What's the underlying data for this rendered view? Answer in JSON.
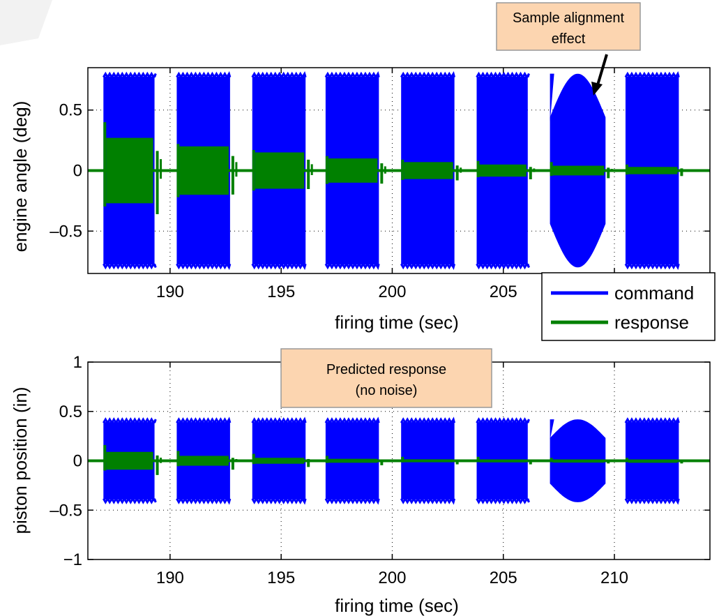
{
  "chart_data": [
    {
      "type": "line",
      "title": "",
      "xlabel": "firing time (sec)",
      "ylabel": "engine angle (deg)",
      "xlim": [
        186.3,
        214.3
      ],
      "ylim": [
        -0.85,
        0.85
      ],
      "xticks": [
        190,
        195,
        200,
        205,
        210
      ],
      "yticks": [
        0.5,
        0,
        -0.5
      ],
      "ytick_labels": [
        "0.5",
        "0",
        "–0.5"
      ],
      "xtick_labels": [
        "190",
        "195",
        "200",
        "205",
        ""
      ],
      "grid": true,
      "legend": {
        "position": "bottom-right",
        "entries": [
          "command",
          "response"
        ]
      },
      "series": [
        {
          "name": "command",
          "color": "#0000ff",
          "segments": [
            {
              "start": 187.0,
              "end": 189.3,
              "amplitude": 0.8
            },
            {
              "start": 190.3,
              "end": 192.7,
              "amplitude": 0.8
            },
            {
              "start": 193.7,
              "end": 196.1,
              "amplitude": 0.8
            },
            {
              "start": 197.0,
              "end": 199.4,
              "amplitude": 0.8
            },
            {
              "start": 200.4,
              "end": 202.8,
              "amplitude": 0.8
            },
            {
              "start": 203.8,
              "end": 206.1,
              "amplitude": 0.8
            },
            {
              "start": 207.1,
              "end": 209.6,
              "amplitude": 0.8
            },
            {
              "start": 210.5,
              "end": 212.9,
              "amplitude": 0.8
            }
          ]
        },
        {
          "name": "response",
          "color": "#008000",
          "segments": [
            {
              "start": 187.0,
              "end": 189.3,
              "amplitude": 0.27,
              "spike": 0.4
            },
            {
              "start": 190.3,
              "end": 192.7,
              "amplitude": 0.2,
              "spike": 0.22
            },
            {
              "start": 193.7,
              "end": 196.1,
              "amplitude": 0.15,
              "spike": 0.17
            },
            {
              "start": 197.0,
              "end": 199.4,
              "amplitude": 0.1,
              "spike": 0.12
            },
            {
              "start": 200.4,
              "end": 202.8,
              "amplitude": 0.07,
              "spike": 0.09
            },
            {
              "start": 203.8,
              "end": 206.1,
              "amplitude": 0.05,
              "spike": 0.08
            },
            {
              "start": 207.1,
              "end": 209.6,
              "amplitude": 0.04,
              "spike": 0.07
            },
            {
              "start": 210.5,
              "end": 212.9,
              "amplitude": 0.03,
              "spike": 0.05
            }
          ]
        }
      ],
      "annotation": "Sample alignment effect",
      "annotation_lines": [
        "Sample alignment",
        "effect"
      ]
    },
    {
      "type": "line",
      "title": "",
      "xlabel": "firing time (sec)",
      "ylabel": "piston position (in)",
      "xlim": [
        186.3,
        214.3
      ],
      "ylim": [
        -1,
        1
      ],
      "xticks": [
        190,
        195,
        200,
        205,
        210
      ],
      "yticks": [
        1,
        0.5,
        0,
        -0.5,
        -1
      ],
      "ytick_labels": [
        "1",
        "0.5",
        "0",
        "–0.5",
        "−1"
      ],
      "xtick_labels": [
        "190",
        "195",
        "200",
        "205",
        "210"
      ],
      "grid": true,
      "series": [
        {
          "name": "command",
          "color": "#0000ff",
          "segments": [
            {
              "start": 187.0,
              "end": 189.3,
              "amplitude": 0.42
            },
            {
              "start": 190.3,
              "end": 192.7,
              "amplitude": 0.42
            },
            {
              "start": 193.7,
              "end": 196.1,
              "amplitude": 0.42
            },
            {
              "start": 197.0,
              "end": 199.4,
              "amplitude": 0.42
            },
            {
              "start": 200.4,
              "end": 202.8,
              "amplitude": 0.42
            },
            {
              "start": 203.8,
              "end": 206.1,
              "amplitude": 0.42
            },
            {
              "start": 207.1,
              "end": 209.6,
              "amplitude": 0.42
            },
            {
              "start": 210.5,
              "end": 212.9,
              "amplitude": 0.42
            }
          ]
        },
        {
          "name": "response",
          "color": "#008000",
          "segments": [
            {
              "start": 187.0,
              "end": 189.3,
              "amplitude": 0.09,
              "spike": 0.16
            },
            {
              "start": 190.3,
              "end": 192.7,
              "amplitude": 0.05,
              "spike": 0.1
            },
            {
              "start": 193.7,
              "end": 196.1,
              "amplitude": 0.03,
              "spike": 0.07
            },
            {
              "start": 197.0,
              "end": 199.4,
              "amplitude": 0.02,
              "spike": 0.05
            },
            {
              "start": 200.4,
              "end": 202.8,
              "amplitude": 0.015,
              "spike": 0.04
            },
            {
              "start": 203.8,
              "end": 206.1,
              "amplitude": 0.012,
              "spike": 0.04
            },
            {
              "start": 207.1,
              "end": 209.6,
              "amplitude": 0.01,
              "spike": 0.03
            },
            {
              "start": 210.5,
              "end": 212.9,
              "amplitude": 0.008,
              "spike": 0.03
            }
          ]
        }
      ],
      "annotation": "Predicted response (no noise)",
      "annotation_lines": [
        "Predicted response",
        "(no noise)"
      ]
    }
  ],
  "colors": {
    "command": "#0000ff",
    "response": "#008000",
    "annotation_fill": "#fcd5b0",
    "annotation_border": "#999999"
  }
}
